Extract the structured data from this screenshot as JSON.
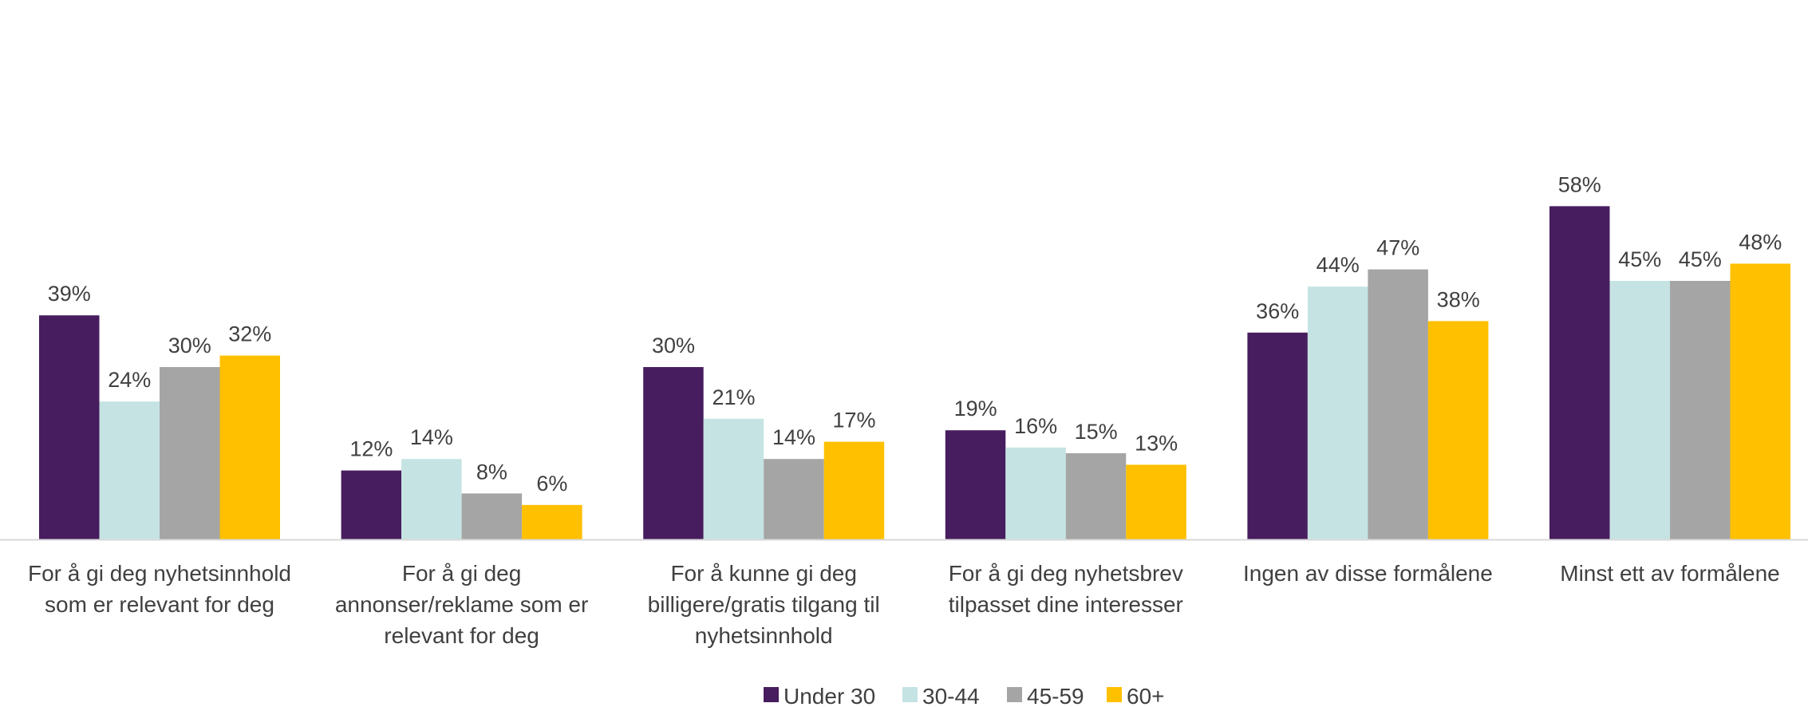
{
  "chart_data": {
    "type": "bar",
    "categories": [
      [
        "For å gi deg nyhetsinnhold",
        "som er relevant for deg"
      ],
      [
        "For å gi deg",
        "annonser/reklame som er",
        "relevant for deg"
      ],
      [
        "For å kunne gi deg",
        "billigere/gratis tilgang til",
        "nyhetsinnhold"
      ],
      [
        "For å gi deg nyhetsbrev",
        "tilpasset dine interesser"
      ],
      [
        "Ingen av disse formålene"
      ],
      [
        "Minst ett av formålene"
      ]
    ],
    "series": [
      {
        "name": "Under 30",
        "color": "#471d5f",
        "values": [
          39,
          12,
          30,
          19,
          36,
          58
        ]
      },
      {
        "name": "30-44",
        "color": "#c5e3e3",
        "values": [
          24,
          14,
          21,
          16,
          44,
          45
        ]
      },
      {
        "name": "45-59",
        "color": "#a5a5a5",
        "values": [
          30,
          8,
          14,
          15,
          47,
          45
        ]
      },
      {
        "name": "60+",
        "color": "#ffc000",
        "values": [
          32,
          6,
          17,
          13,
          38,
          48
        ]
      }
    ],
    "value_suffix": "%",
    "ylim": [
      0,
      60
    ],
    "grid": false,
    "legend": "bottom-center",
    "axis_color": "#d9d9d9",
    "text_color": "#404040"
  }
}
